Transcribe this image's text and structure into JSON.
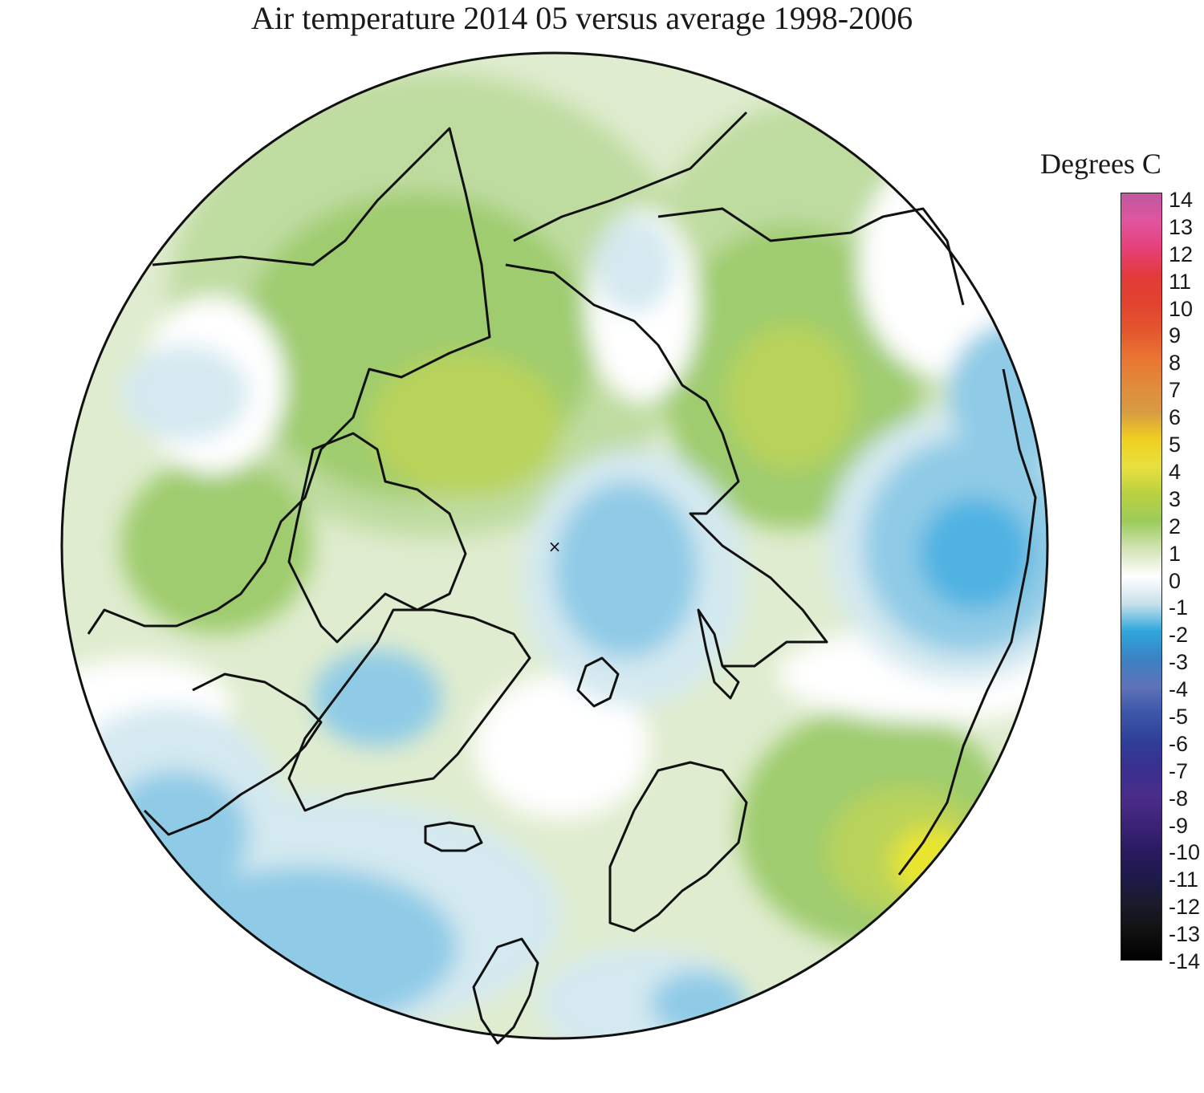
{
  "title": "Air temperature 2014 05 versus average 1998-2006",
  "legend": {
    "title": "Degrees C",
    "ticks": [
      "14",
      "13",
      "12",
      "11",
      "10",
      "9",
      "8",
      "7",
      "6",
      "5",
      "4",
      "3",
      "2",
      "1",
      "0",
      "-1",
      "-2",
      "-3",
      "-4",
      "-5",
      "-6",
      "-7",
      "-8",
      "-9",
      "-10",
      "-11",
      "-12",
      "-13",
      "-14"
    ],
    "colors": [
      "#c0589f",
      "#e0559e",
      "#e6407a",
      "#e23a3a",
      "#e2432f",
      "#e4552e",
      "#e97532",
      "#e08a3a",
      "#d89b42",
      "#f0d020",
      "#e8e040",
      "#b8d040",
      "#9ccc5c",
      "#d4e4b8",
      "#ffffff",
      "#c8e0ea",
      "#2ea6dc",
      "#3b82c4",
      "#5f73b8",
      "#3b56a8",
      "#2f3f98",
      "#3a2f8f",
      "#4a2d8a",
      "#3d2378",
      "#2a1a60",
      "#1d1a4a",
      "#1a1a2a",
      "#101010",
      "#000000"
    ]
  },
  "map": {
    "projection": "north polar stereographic",
    "pole_marker": "×",
    "colors": {
      "background_zero": "#ffffff",
      "light_warm": "#dfeccf",
      "warm_1": "#bfdca0",
      "warm_2": "#9fcc6e",
      "warm_3": "#b9d35a",
      "warm_4": "#e9e52e",
      "cool_1": "#d4e9f0",
      "cool_2": "#8fcbe6",
      "cool_3": "#4fb2e2",
      "coast": "#111111"
    }
  }
}
